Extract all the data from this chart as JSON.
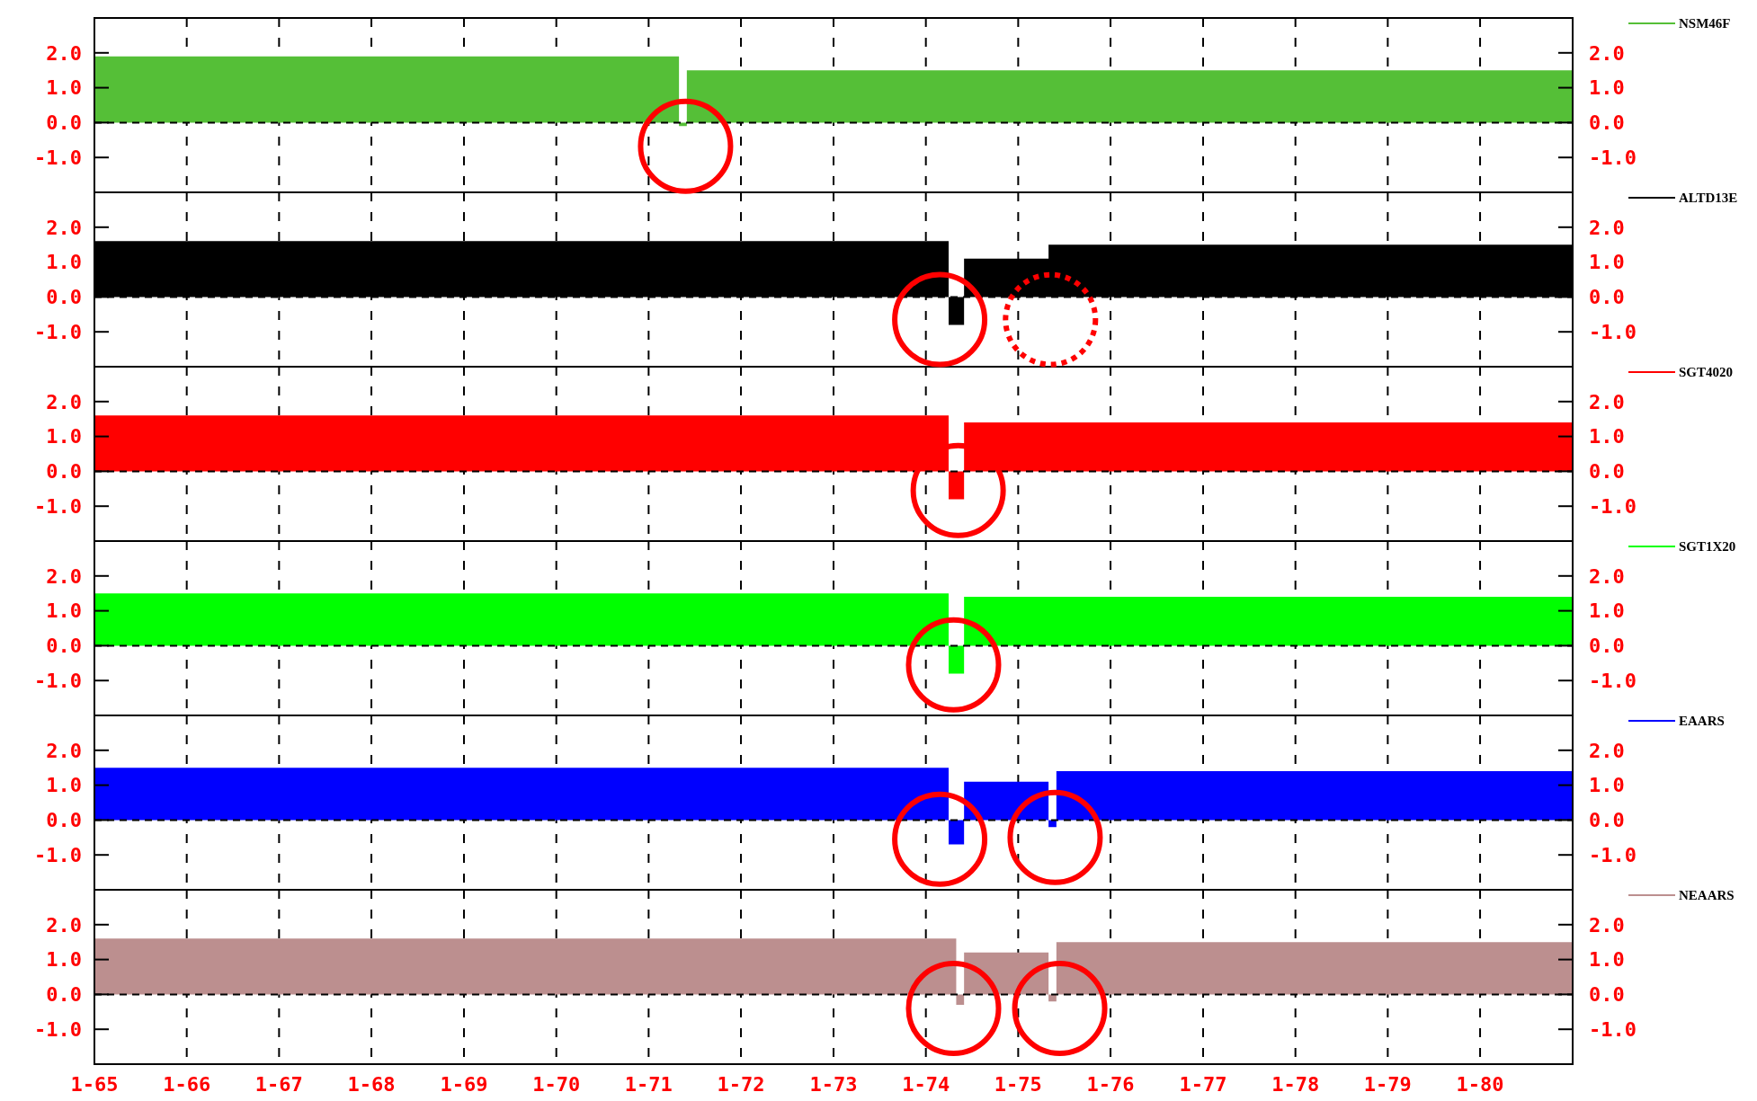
{
  "chart_data": [
    {
      "type": "area",
      "xlim": [
        "1965-01",
        "1981-01"
      ],
      "ylim": [
        -2,
        3
      ],
      "y2lim": [
        -2,
        3
      ],
      "yticks": [
        {
          "value": -1,
          "label": "-1.0"
        },
        {
          "value": 0,
          "label": "0.0"
        },
        {
          "value": 1,
          "label": "1.0"
        },
        {
          "value": 2,
          "label": "2.0"
        }
      ],
      "y2ticks": [
        {
          "value": -1,
          "label": "-1.0"
        },
        {
          "value": 0,
          "label": "0.0"
        },
        {
          "value": 1,
          "label": "1.0"
        },
        {
          "value": 2,
          "label": "2.0"
        }
      ],
      "xticks": [
        {
          "value": "1965-01",
          "label": null
        },
        {
          "value": "1966-01",
          "label": null
        },
        {
          "value": "1967-01",
          "label": null
        },
        {
          "value": "1968-01",
          "label": null
        },
        {
          "value": "1969-01",
          "label": null
        },
        {
          "value": "1970-01",
          "label": null
        },
        {
          "value": "1971-01",
          "label": null
        },
        {
          "value": "1972-01",
          "label": null
        },
        {
          "value": "1973-01",
          "label": null
        },
        {
          "value": "1974-01",
          "label": null
        },
        {
          "value": "1975-01",
          "label": null
        },
        {
          "value": "1976-01",
          "label": null
        },
        {
          "value": "1977-01",
          "label": null
        },
        {
          "value": "1978-01",
          "label": null
        },
        {
          "value": "1979-01",
          "label": null
        },
        {
          "value": "1980-01",
          "label": null
        }
      ],
      "tick_labels": "y",
      "grid": "x",
      "legend": "top right",
      "ref_lines": [
        {
          "axis": "y",
          "value": 0,
          "line_style": "dashed",
          "color": "#000000"
        }
      ],
      "series": [
        {
          "name": "NSM46F",
          "color": "#55bf37",
          "x": [
            "1965-01",
            "1971-05",
            "1971-06",
            "1981-01"
          ],
          "values": [
            1.9,
            -0.1,
            1.5,
            1.5
          ]
        }
      ]
    },
    {
      "type": "area",
      "xlim": [
        "1965-01",
        "1981-01"
      ],
      "ylim": [
        -2,
        3
      ],
      "y2lim": [
        -2,
        3
      ],
      "yticks": [
        {
          "value": -1,
          "label": "-1.0"
        },
        {
          "value": 0,
          "label": "0.0"
        },
        {
          "value": 1,
          "label": "1.0"
        },
        {
          "value": 2,
          "label": "2.0"
        }
      ],
      "y2ticks": [
        {
          "value": -1,
          "label": "-1.0"
        },
        {
          "value": 0,
          "label": "0.0"
        },
        {
          "value": 1,
          "label": "1.0"
        },
        {
          "value": 2,
          "label": "2.0"
        }
      ],
      "xticks": [
        {
          "value": "1965-01",
          "label": null
        },
        {
          "value": "1966-01",
          "label": null
        },
        {
          "value": "1967-01",
          "label": null
        },
        {
          "value": "1968-01",
          "label": null
        },
        {
          "value": "1969-01",
          "label": null
        },
        {
          "value": "1970-01",
          "label": null
        },
        {
          "value": "1971-01",
          "label": null
        },
        {
          "value": "1972-01",
          "label": null
        },
        {
          "value": "1973-01",
          "label": null
        },
        {
          "value": "1974-01",
          "label": null
        },
        {
          "value": "1975-01",
          "label": null
        },
        {
          "value": "1976-01",
          "label": null
        },
        {
          "value": "1977-01",
          "label": null
        },
        {
          "value": "1978-01",
          "label": null
        },
        {
          "value": "1979-01",
          "label": null
        },
        {
          "value": "1980-01",
          "label": null
        }
      ],
      "tick_labels": "y",
      "grid": "x",
      "legend": "top right",
      "ref_lines": [
        {
          "axis": "y",
          "value": 0,
          "line_style": "dashed",
          "color": "#000000"
        }
      ],
      "series": [
        {
          "name": "ALTD13E",
          "color": "#000000",
          "x": [
            "1965-01",
            "1974-04",
            "1974-06",
            "1975-05",
            "1981-01"
          ],
          "values": [
            1.6,
            -0.8,
            1.1,
            1.5,
            1.5
          ]
        }
      ]
    },
    {
      "type": "area",
      "xlim": [
        "1965-01",
        "1981-01"
      ],
      "ylim": [
        -2,
        3
      ],
      "y2lim": [
        -2,
        3
      ],
      "yticks": [
        {
          "value": -1,
          "label": "-1.0"
        },
        {
          "value": 0,
          "label": "0.0"
        },
        {
          "value": 1,
          "label": "1.0"
        },
        {
          "value": 2,
          "label": "2.0"
        }
      ],
      "y2ticks": [
        {
          "value": -1,
          "label": "-1.0"
        },
        {
          "value": 0,
          "label": "0.0"
        },
        {
          "value": 1,
          "label": "1.0"
        },
        {
          "value": 2,
          "label": "2.0"
        }
      ],
      "xticks": [
        {
          "value": "1965-01",
          "label": null
        },
        {
          "value": "1966-01",
          "label": null
        },
        {
          "value": "1967-01",
          "label": null
        },
        {
          "value": "1968-01",
          "label": null
        },
        {
          "value": "1969-01",
          "label": null
        },
        {
          "value": "1970-01",
          "label": null
        },
        {
          "value": "1971-01",
          "label": null
        },
        {
          "value": "1972-01",
          "label": null
        },
        {
          "value": "1973-01",
          "label": null
        },
        {
          "value": "1974-01",
          "label": null
        },
        {
          "value": "1975-01",
          "label": null
        },
        {
          "value": "1976-01",
          "label": null
        },
        {
          "value": "1977-01",
          "label": null
        },
        {
          "value": "1978-01",
          "label": null
        },
        {
          "value": "1979-01",
          "label": null
        },
        {
          "value": "1980-01",
          "label": null
        }
      ],
      "tick_labels": "y",
      "grid": "x",
      "legend": "top right",
      "ref_lines": [
        {
          "axis": "y",
          "value": 0,
          "line_style": "dashed",
          "color": "#000000"
        }
      ],
      "series": [
        {
          "name": "SGT4020",
          "color": "#ff0000",
          "x": [
            "1965-01",
            "1974-04",
            "1974-06",
            "1981-01"
          ],
          "values": [
            1.6,
            -0.8,
            1.4,
            1.4
          ]
        }
      ]
    },
    {
      "type": "area",
      "xlim": [
        "1965-01",
        "1981-01"
      ],
      "ylim": [
        -2,
        3
      ],
      "y2lim": [
        -2,
        3
      ],
      "yticks": [
        {
          "value": -1,
          "label": "-1.0"
        },
        {
          "value": 0,
          "label": "0.0"
        },
        {
          "value": 1,
          "label": "1.0"
        },
        {
          "value": 2,
          "label": "2.0"
        }
      ],
      "y2ticks": [
        {
          "value": -1,
          "label": "-1.0"
        },
        {
          "value": 0,
          "label": "0.0"
        },
        {
          "value": 1,
          "label": "1.0"
        },
        {
          "value": 2,
          "label": "2.0"
        }
      ],
      "xticks": [
        {
          "value": "1965-01",
          "label": null
        },
        {
          "value": "1966-01",
          "label": null
        },
        {
          "value": "1967-01",
          "label": null
        },
        {
          "value": "1968-01",
          "label": null
        },
        {
          "value": "1969-01",
          "label": null
        },
        {
          "value": "1970-01",
          "label": null
        },
        {
          "value": "1971-01",
          "label": null
        },
        {
          "value": "1972-01",
          "label": null
        },
        {
          "value": "1973-01",
          "label": null
        },
        {
          "value": "1974-01",
          "label": null
        },
        {
          "value": "1975-01",
          "label": null
        },
        {
          "value": "1976-01",
          "label": null
        },
        {
          "value": "1977-01",
          "label": null
        },
        {
          "value": "1978-01",
          "label": null
        },
        {
          "value": "1979-01",
          "label": null
        },
        {
          "value": "1980-01",
          "label": null
        }
      ],
      "tick_labels": "y",
      "grid": "x",
      "legend": "top right",
      "ref_lines": [
        {
          "axis": "y",
          "value": 0,
          "line_style": "dashed",
          "color": "#000000"
        }
      ],
      "series": [
        {
          "name": "SGT1X20",
          "color": "#00ff00",
          "x": [
            "1965-01",
            "1974-04",
            "1974-06",
            "1981-01"
          ],
          "values": [
            1.5,
            -0.8,
            1.4,
            1.4
          ]
        }
      ]
    },
    {
      "type": "area",
      "xlim": [
        "1965-01",
        "1981-01"
      ],
      "ylim": [
        -2,
        3
      ],
      "y2lim": [
        -2,
        3
      ],
      "yticks": [
        {
          "value": -1,
          "label": "-1.0"
        },
        {
          "value": 0,
          "label": "0.0"
        },
        {
          "value": 1,
          "label": "1.0"
        },
        {
          "value": 2,
          "label": "2.0"
        }
      ],
      "y2ticks": [
        {
          "value": -1,
          "label": "-1.0"
        },
        {
          "value": 0,
          "label": "0.0"
        },
        {
          "value": 1,
          "label": "1.0"
        },
        {
          "value": 2,
          "label": "2.0"
        }
      ],
      "xticks": [
        {
          "value": "1965-01",
          "label": null
        },
        {
          "value": "1966-01",
          "label": null
        },
        {
          "value": "1967-01",
          "label": null
        },
        {
          "value": "1968-01",
          "label": null
        },
        {
          "value": "1969-01",
          "label": null
        },
        {
          "value": "1970-01",
          "label": null
        },
        {
          "value": "1971-01",
          "label": null
        },
        {
          "value": "1972-01",
          "label": null
        },
        {
          "value": "1973-01",
          "label": null
        },
        {
          "value": "1974-01",
          "label": null
        },
        {
          "value": "1975-01",
          "label": null
        },
        {
          "value": "1976-01",
          "label": null
        },
        {
          "value": "1977-01",
          "label": null
        },
        {
          "value": "1978-01",
          "label": null
        },
        {
          "value": "1979-01",
          "label": null
        },
        {
          "value": "1980-01",
          "label": null
        }
      ],
      "tick_labels": "y",
      "grid": "x",
      "legend": "top right",
      "ref_lines": [
        {
          "axis": "y",
          "value": 0,
          "line_style": "dashed",
          "color": "#000000"
        }
      ],
      "series": [
        {
          "name": "EAARS",
          "color": "#0000ff",
          "x": [
            "1965-01",
            "1974-04",
            "1974-06",
            "1975-05",
            "1975-06",
            "1981-01"
          ],
          "values": [
            1.5,
            -0.7,
            1.1,
            -0.2,
            1.4,
            1.4
          ]
        }
      ]
    },
    {
      "type": "area",
      "xlim": [
        "1965-01",
        "1981-01"
      ],
      "ylim": [
        -2,
        3
      ],
      "y2lim": [
        -2,
        3
      ],
      "yticks": [
        {
          "value": -1,
          "label": "-1.0"
        },
        {
          "value": 0,
          "label": "0.0"
        },
        {
          "value": 1,
          "label": "1.0"
        },
        {
          "value": 2,
          "label": "2.0"
        }
      ],
      "y2ticks": [
        {
          "value": -1,
          "label": "-1.0"
        },
        {
          "value": 0,
          "label": "0.0"
        },
        {
          "value": 1,
          "label": "1.0"
        },
        {
          "value": 2,
          "label": "2.0"
        }
      ],
      "xticks": [
        {
          "value": "1965-01",
          "label": "1-65"
        },
        {
          "value": "1966-01",
          "label": "1-66"
        },
        {
          "value": "1967-01",
          "label": "1-67"
        },
        {
          "value": "1968-01",
          "label": "1-68"
        },
        {
          "value": "1969-01",
          "label": "1-69"
        },
        {
          "value": "1970-01",
          "label": "1-70"
        },
        {
          "value": "1971-01",
          "label": "1-71"
        },
        {
          "value": "1972-01",
          "label": "1-72"
        },
        {
          "value": "1973-01",
          "label": "1-73"
        },
        {
          "value": "1974-01",
          "label": "1-74"
        },
        {
          "value": "1975-01",
          "label": "1-75"
        },
        {
          "value": "1976-01",
          "label": "1-76"
        },
        {
          "value": "1977-01",
          "label": "1-77"
        },
        {
          "value": "1978-01",
          "label": "1-78"
        },
        {
          "value": "1979-01",
          "label": "1-79"
        },
        {
          "value": "1980-01",
          "label": "1-80"
        }
      ],
      "grid": "x",
      "legend": "top right",
      "ref_lines": [
        {
          "axis": "y",
          "value": 0,
          "line_style": "dashed",
          "color": "#000000"
        }
      ],
      "series": [
        {
          "name": "NEAARS",
          "color": "#bc8f8f",
          "x": [
            "1965-01",
            "1974-05",
            "1974-06",
            "1975-05",
            "1975-06",
            "1981-01"
          ],
          "values": [
            1.6,
            -0.3,
            1.2,
            -0.2,
            1.5,
            1.5
          ]
        }
      ]
    }
  ]
}
